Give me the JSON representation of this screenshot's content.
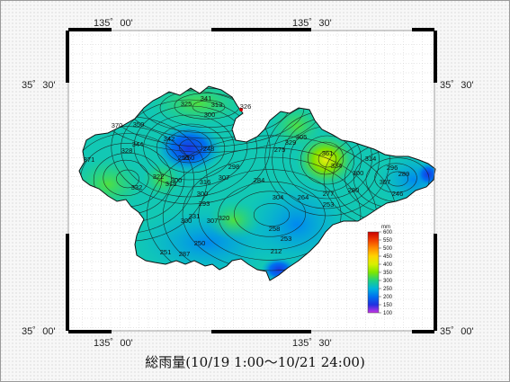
{
  "map": {
    "caption": "総雨量(10/19 1:00～10/21 24:00)",
    "longitude_labels": [
      "135゜00'",
      "135゜30'"
    ],
    "latitude_labels": [
      "35゜30'",
      "35゜00'"
    ],
    "grid_color": "#cfcfcf",
    "border_color": "#000000",
    "background": "#ffffff"
  },
  "colorbar": {
    "unit": "mm",
    "ticks": [
      "600",
      "550",
      "500",
      "450",
      "400",
      "350",
      "300",
      "250",
      "200",
      "150",
      "100"
    ],
    "colors": [
      "#c80000",
      "#f03c00",
      "#ff8c00",
      "#ffd400",
      "#d8f000",
      "#7de600",
      "#20d080",
      "#00b4dc",
      "#0070f0",
      "#2030e0",
      "#8c28d2",
      "#c832e6"
    ]
  },
  "contour_labels": [
    {
      "text": "341"
    },
    {
      "text": "313"
    },
    {
      "text": "325"
    },
    {
      "text": "300"
    },
    {
      "text": "326"
    },
    {
      "text": "370"
    },
    {
      "text": "350"
    },
    {
      "text": "344"
    },
    {
      "text": "328"
    },
    {
      "text": "342"
    },
    {
      "text": "250"
    },
    {
      "text": "248"
    },
    {
      "text": "371"
    },
    {
      "text": "322"
    },
    {
      "text": "300"
    },
    {
      "text": "315"
    },
    {
      "text": "332"
    },
    {
      "text": "316"
    },
    {
      "text": "307"
    },
    {
      "text": "300"
    },
    {
      "text": "293"
    },
    {
      "text": "298"
    },
    {
      "text": "275"
    },
    {
      "text": "329"
    },
    {
      "text": "305"
    },
    {
      "text": "284"
    },
    {
      "text": "331"
    },
    {
      "text": "300"
    },
    {
      "text": "320"
    },
    {
      "text": "307"
    },
    {
      "text": "304"
    },
    {
      "text": "264"
    },
    {
      "text": "277"
    },
    {
      "text": "280"
    },
    {
      "text": "253"
    },
    {
      "text": "361"
    },
    {
      "text": "334"
    },
    {
      "text": "314"
    },
    {
      "text": "300"
    },
    {
      "text": "296"
    },
    {
      "text": "289"
    },
    {
      "text": "307"
    },
    {
      "text": "246"
    },
    {
      "text": "250"
    },
    {
      "text": "250"
    },
    {
      "text": "258"
    },
    {
      "text": "253"
    },
    {
      "text": "251"
    },
    {
      "text": "287"
    },
    {
      "text": "212"
    }
  ]
}
